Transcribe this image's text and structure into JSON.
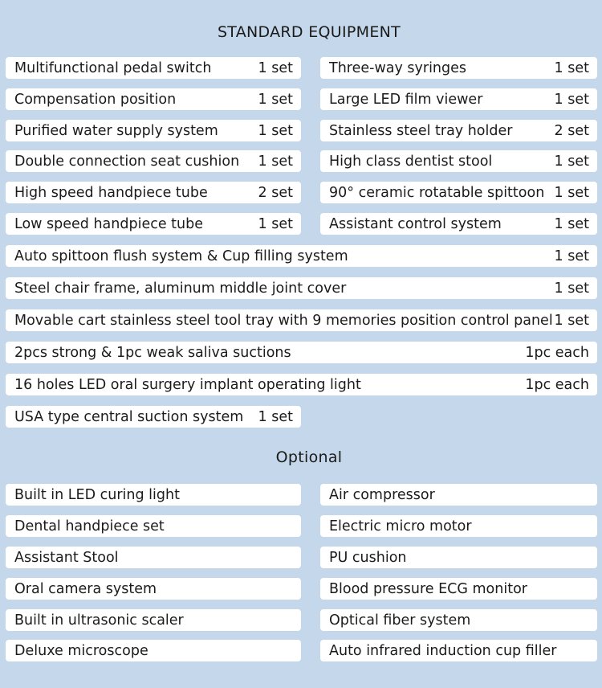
{
  "standard": {
    "title": "STANDARD EQUIPMENT",
    "rows": [
      {
        "left": {
          "name": "Multifunctional pedal switch",
          "qty": "1 set"
        },
        "right": {
          "name": "Three-way syringes",
          "qty": "1 set"
        }
      },
      {
        "left": {
          "name": "Compensation position",
          "qty": "1 set"
        },
        "right": {
          "name": "Large LED film viewer",
          "qty": "1 set"
        }
      },
      {
        "left": {
          "name": "Purified water supply system",
          "qty": "1 set"
        },
        "right": {
          "name": "Stainless steel tray holder",
          "qty": "2 set"
        }
      },
      {
        "left": {
          "name": "Double connection seat cushion",
          "qty": "1 set"
        },
        "right": {
          "name": "High class dentist stool",
          "qty": "1 set"
        }
      },
      {
        "left": {
          "name": "High speed handpiece tube",
          "qty": "2 set"
        },
        "right": {
          "name": "90° ceramic rotatable spittoon",
          "qty": "1 set"
        }
      },
      {
        "left": {
          "name": "Low speed handpiece tube",
          "qty": "1 set"
        },
        "right": {
          "name": "Assistant control system",
          "qty": "1 set"
        }
      }
    ],
    "full_rows": [
      {
        "name": "Auto spittoon flush system & Cup filling system",
        "qty": "1 set"
      },
      {
        "name": "Steel chair frame, aluminum middle joint cover",
        "qty": "1 set"
      },
      {
        "name": "Movable cart stainless steel tool tray with 9 memories position control panel",
        "qty": "1 set"
      },
      {
        "name": "2pcs strong & 1pc weak saliva suctions",
        "qty": "1pc each"
      },
      {
        "name": "16 holes LED oral surgery implant operating light",
        "qty": "1pc each"
      }
    ],
    "last_row": {
      "name": "USA type central suction system",
      "qty": "1 set"
    }
  },
  "optional": {
    "title": "Optional",
    "rows": [
      {
        "left": "Built in LED curing light",
        "right": "Air compressor"
      },
      {
        "left": "Dental handpiece set",
        "right": "Electric micro motor"
      },
      {
        "left": "Assistant Stool",
        "right": "PU cushion"
      },
      {
        "left": "Oral camera system",
        "right": "Blood pressure ECG monitor"
      },
      {
        "left": "Built in ultrasonic scaler",
        "right": "Optical fiber system"
      },
      {
        "left": "Deluxe microscope",
        "right": "Auto infrared induction cup filler"
      }
    ]
  }
}
